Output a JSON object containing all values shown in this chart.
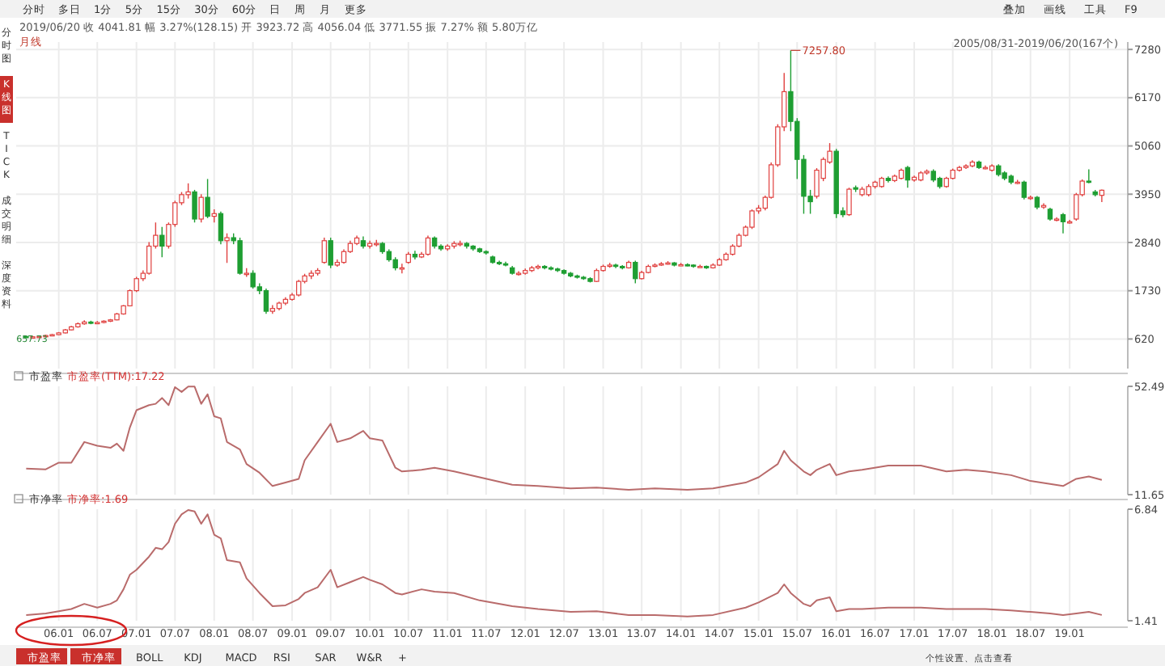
{
  "chart_data": [
    {
      "type": "candlestick",
      "title": "2019/06/20 收 4041.81 幅 3.27%(128.15) 开 3923.72 高 4056.04 低 3771.55 振 7.27% 额 5.80万亿",
      "subtitle": "月线",
      "annotations": [
        {
          "text": "7257.80",
          "x": "2015-06",
          "y": 7257.8
        },
        {
          "text": "657.73",
          "x": "2005-08",
          "y": 657.73
        },
        "2005/08/31-2019/06/20(167个)"
      ],
      "xticks": [
        {
          "value": "2006-01",
          "label": null
        },
        {
          "value": "2006-07",
          "label": null
        },
        {
          "value": "2007-01",
          "label": null
        },
        {
          "value": "2007-07",
          "label": null
        },
        {
          "value": "2008-01",
          "label": null
        },
        {
          "value": "2008-07",
          "label": null
        },
        {
          "value": "2009-01",
          "label": null
        },
        {
          "value": "2009-07",
          "label": null
        },
        {
          "value": "2010-01",
          "label": null
        },
        {
          "value": "2010-07",
          "label": null
        },
        {
          "value": "2011-01",
          "label": null
        },
        {
          "value": "2011-07",
          "label": null
        },
        {
          "value": "2012-01",
          "label": null
        },
        {
          "value": "2012-07",
          "label": null
        },
        {
          "value": "2013-01",
          "label": null
        },
        {
          "value": "2013-07",
          "label": null
        },
        {
          "value": "2014-01",
          "label": null
        },
        {
          "value": "2014-07",
          "label": null
        },
        {
          "value": "2015-01",
          "label": null
        },
        {
          "value": "2015-07",
          "label": null
        },
        {
          "value": "2016-01",
          "label": null
        },
        {
          "value": "2016-07",
          "label": null
        },
        {
          "value": "2017-01",
          "label": null
        },
        {
          "value": "2017-07",
          "label": null
        },
        {
          "value": "2018-01",
          "label": null
        },
        {
          "value": "2018-07",
          "label": null
        },
        {
          "value": "2019-01",
          "label": null
        }
      ],
      "x": [
        "2005-08",
        "2005-09",
        "2005-10",
        "2005-11",
        "2005-12",
        "2006-01",
        "2006-02",
        "2006-03",
        "2006-04",
        "2006-05",
        "2006-06",
        "2006-07",
        "2006-08",
        "2006-09",
        "2006-10",
        "2006-11",
        "2006-12",
        "2007-01",
        "2007-02",
        "2007-03",
        "2007-04",
        "2007-05",
        "2007-06",
        "2007-07",
        "2007-08",
        "2007-09",
        "2007-10",
        "2007-11",
        "2007-12",
        "2008-01",
        "2008-02",
        "2008-03",
        "2008-04",
        "2008-05",
        "2008-06",
        "2008-07",
        "2008-08",
        "2008-09",
        "2008-10",
        "2008-11",
        "2008-12",
        "2009-01",
        "2009-02",
        "2009-03",
        "2009-04",
        "2009-05",
        "2009-06",
        "2009-07",
        "2009-08",
        "2009-09",
        "2009-10",
        "2009-11",
        "2009-12",
        "2010-01",
        "2010-02",
        "2010-03",
        "2010-04",
        "2010-05",
        "2010-06",
        "2010-07",
        "2010-08",
        "2010-09",
        "2010-10",
        "2010-11",
        "2010-12",
        "2011-01",
        "2011-02",
        "2011-03",
        "2011-04",
        "2011-05",
        "2011-06",
        "2011-07",
        "2011-08",
        "2011-09",
        "2011-10",
        "2011-11",
        "2011-12",
        "2012-01",
        "2012-02",
        "2012-03",
        "2012-04",
        "2012-05",
        "2012-06",
        "2012-07",
        "2012-08",
        "2012-09",
        "2012-10",
        "2012-11",
        "2012-12",
        "2013-01",
        "2013-02",
        "2013-03",
        "2013-04",
        "2013-05",
        "2013-06",
        "2013-07",
        "2013-08",
        "2013-09",
        "2013-10",
        "2013-11",
        "2013-12",
        "2014-01",
        "2014-02",
        "2014-03",
        "2014-04",
        "2014-05",
        "2014-06",
        "2014-07",
        "2014-08",
        "2014-09",
        "2014-10",
        "2014-11",
        "2014-12",
        "2015-01",
        "2015-02",
        "2015-03",
        "2015-04",
        "2015-05",
        "2015-06",
        "2015-07",
        "2015-08",
        "2015-09",
        "2015-10",
        "2015-11",
        "2015-12",
        "2016-01",
        "2016-02",
        "2016-03",
        "2016-04",
        "2016-05",
        "2016-06",
        "2016-07",
        "2016-08",
        "2016-09",
        "2016-10",
        "2016-11",
        "2016-12",
        "2017-01",
        "2017-02",
        "2017-03",
        "2017-04",
        "2017-05",
        "2017-06",
        "2017-07",
        "2017-08",
        "2017-09",
        "2017-10",
        "2017-11",
        "2017-12",
        "2018-01",
        "2018-02",
        "2018-03",
        "2018-04",
        "2018-05",
        "2018-06",
        "2018-07",
        "2018-08",
        "2018-09",
        "2018-10",
        "2018-11",
        "2018-12",
        "2019-01",
        "2019-02",
        "2019-03",
        "2019-04",
        "2019-05",
        "2019-06"
      ],
      "ohlc": [
        [
          680,
          700,
          657.73,
          660
        ],
        [
          660,
          690,
          650,
          670
        ],
        [
          670,
          700,
          660,
          680
        ],
        [
          680,
          720,
          670,
          700
        ],
        [
          700,
          740,
          690,
          720
        ],
        [
          720,
          780,
          710,
          760
        ],
        [
          760,
          850,
          750,
          830
        ],
        [
          830,
          920,
          820,
          900
        ],
        [
          900,
          1000,
          880,
          970
        ],
        [
          970,
          1050,
          950,
          1010
        ],
        [
          1010,
          1040,
          960,
          990
        ],
        [
          990,
          1030,
          970,
          1000
        ],
        [
          1000,
          1050,
          980,
          1030
        ],
        [
          1030,
          1080,
          1010,
          1060
        ],
        [
          1060,
          1220,
          1050,
          1196
        ],
        [
          1196,
          1400,
          1180,
          1383
        ],
        [
          1383,
          1760,
          1370,
          1732
        ],
        [
          1732,
          2050,
          1700,
          2008
        ],
        [
          2008,
          2200,
          1950,
          2132
        ],
        [
          2132,
          2850,
          2100,
          2756
        ],
        [
          2756,
          3300,
          2700,
          3005
        ],
        [
          3005,
          3200,
          2500,
          2756
        ],
        [
          2756,
          3300,
          2700,
          3255
        ],
        [
          3255,
          3800,
          3200,
          3754
        ],
        [
          3754,
          4000,
          3700,
          3940
        ],
        [
          3940,
          4200,
          3850,
          4003
        ],
        [
          4003,
          4050,
          3300,
          3379
        ],
        [
          3379,
          3950,
          3300,
          3878
        ],
        [
          3878,
          4300,
          3400,
          3442
        ],
        [
          3442,
          3600,
          3300,
          3504
        ],
        [
          3504,
          3550,
          2800,
          2881
        ],
        [
          2881,
          3050,
          2370,
          2950
        ],
        [
          2950,
          3050,
          2800,
          2881
        ],
        [
          2881,
          2950,
          2100,
          2132
        ],
        [
          2132,
          2250,
          2050,
          2132
        ],
        [
          2132,
          2200,
          1780,
          1820
        ],
        [
          1820,
          1900,
          1650,
          1732
        ],
        [
          1732,
          1780,
          1200,
          1258
        ],
        [
          1258,
          1400,
          1200,
          1321
        ],
        [
          1321,
          1480,
          1280,
          1445
        ],
        [
          1445,
          1580,
          1400,
          1532
        ],
        [
          1532,
          1680,
          1500,
          1632
        ],
        [
          1632,
          1980,
          1600,
          1945
        ],
        [
          1945,
          2120,
          1900,
          2070
        ],
        [
          2070,
          2200,
          2000,
          2132
        ],
        [
          2132,
          2250,
          2080,
          2195
        ],
        [
          2382,
          2950,
          2350,
          2881
        ],
        [
          2881,
          2950,
          2250,
          2320
        ],
        [
          2320,
          2450,
          2280,
          2382
        ],
        [
          2382,
          2680,
          2350,
          2631
        ],
        [
          2631,
          2880,
          2600,
          2818
        ],
        [
          2818,
          3000,
          2780,
          2943
        ],
        [
          2881,
          2980,
          2700,
          2756
        ],
        [
          2756,
          2880,
          2700,
          2818
        ],
        [
          2818,
          2900,
          2750,
          2818
        ],
        [
          2818,
          2850,
          2580,
          2631
        ],
        [
          2631,
          2680,
          2400,
          2444
        ],
        [
          2444,
          2500,
          2200,
          2257
        ],
        [
          2257,
          2350,
          2130,
          2257
        ],
        [
          2382,
          2620,
          2350,
          2569
        ],
        [
          2569,
          2650,
          2450,
          2507
        ],
        [
          2507,
          2620,
          2480,
          2569
        ],
        [
          2569,
          3000,
          2540,
          2943
        ],
        [
          2943,
          2980,
          2700,
          2756
        ],
        [
          2756,
          2800,
          2650,
          2694
        ],
        [
          2694,
          2800,
          2650,
          2756
        ],
        [
          2756,
          2870,
          2700,
          2818
        ],
        [
          2818,
          2880,
          2750,
          2818
        ],
        [
          2818,
          2850,
          2700,
          2756
        ],
        [
          2756,
          2780,
          2650,
          2694
        ],
        [
          2694,
          2720,
          2600,
          2631
        ],
        [
          2631,
          2660,
          2560,
          2600
        ],
        [
          2507,
          2540,
          2350,
          2382
        ],
        [
          2382,
          2420,
          2320,
          2350
        ],
        [
          2350,
          2400,
          2290,
          2320
        ],
        [
          2257,
          2300,
          2100,
          2132
        ],
        [
          2132,
          2180,
          2080,
          2132
        ],
        [
          2132,
          2240,
          2100,
          2195
        ],
        [
          2195,
          2300,
          2160,
          2257
        ],
        [
          2257,
          2330,
          2220,
          2290
        ],
        [
          2290,
          2320,
          2220,
          2257
        ],
        [
          2257,
          2290,
          2200,
          2230
        ],
        [
          2230,
          2260,
          2160,
          2195
        ],
        [
          2195,
          2220,
          2100,
          2132
        ],
        [
          2132,
          2160,
          2040,
          2070
        ],
        [
          2070,
          2100,
          2010,
          2040
        ],
        [
          2040,
          2070,
          1980,
          2008
        ],
        [
          2008,
          2040,
          1920,
          1945
        ],
        [
          1945,
          2240,
          1930,
          2195
        ],
        [
          2195,
          2330,
          2170,
          2290
        ],
        [
          2290,
          2370,
          2260,
          2320
        ],
        [
          2320,
          2350,
          2250,
          2290
        ],
        [
          2290,
          2320,
          2220,
          2257
        ],
        [
          2257,
          2420,
          2240,
          2382
        ],
        [
          2382,
          2420,
          1900,
          2008
        ],
        [
          2008,
          2190,
          1990,
          2150
        ],
        [
          2150,
          2330,
          2130,
          2290
        ],
        [
          2290,
          2360,
          2270,
          2320
        ],
        [
          2320,
          2390,
          2300,
          2350
        ],
        [
          2350,
          2410,
          2330,
          2370
        ],
        [
          2370,
          2390,
          2290,
          2320
        ],
        [
          2320,
          2370,
          2300,
          2330
        ],
        [
          2330,
          2360,
          2290,
          2320
        ],
        [
          2320,
          2340,
          2260,
          2290
        ],
        [
          2290,
          2330,
          2260,
          2290
        ],
        [
          2290,
          2310,
          2230,
          2257
        ],
        [
          2257,
          2360,
          2240,
          2320
        ],
        [
          2320,
          2480,
          2300,
          2444
        ],
        [
          2444,
          2610,
          2420,
          2569
        ],
        [
          2569,
          2800,
          2540,
          2756
        ],
        [
          2756,
          3050,
          2730,
          3005
        ],
        [
          3005,
          3230,
          2980,
          3192
        ],
        [
          3192,
          3600,
          3150,
          3566
        ],
        [
          3566,
          3700,
          3500,
          3629
        ],
        [
          3629,
          3920,
          3580,
          3878
        ],
        [
          3878,
          4680,
          3850,
          4626
        ],
        [
          4626,
          5560,
          4580,
          5499
        ],
        [
          5499,
          6740,
          5400,
          6309
        ],
        [
          6309,
          7257.8,
          5400,
          5624
        ],
        [
          5624,
          5700,
          4300,
          4751
        ],
        [
          4751,
          4850,
          3500,
          3903
        ],
        [
          3903,
          4050,
          3500,
          3778
        ],
        [
          3903,
          4550,
          3850,
          4502
        ],
        [
          4315,
          4800,
          4250,
          4751
        ],
        [
          4689,
          5125,
          4650,
          4938
        ],
        [
          4938,
          4990,
          3400,
          3504
        ],
        [
          3566,
          3650,
          3420,
          3479
        ],
        [
          3479,
          4100,
          3450,
          4065
        ],
        [
          4100,
          4150,
          4000,
          4065
        ],
        [
          3940,
          4120,
          3900,
          4065
        ],
        [
          3940,
          4180,
          3900,
          4127
        ],
        [
          4127,
          4260,
          4080,
          4227
        ],
        [
          4127,
          4350,
          4100,
          4315
        ],
        [
          4315,
          4360,
          4220,
          4265
        ],
        [
          4265,
          4400,
          4230,
          4365
        ],
        [
          4315,
          4540,
          4290,
          4502
        ],
        [
          4564,
          4600,
          4100,
          4277
        ],
        [
          4277,
          4380,
          4240,
          4340
        ],
        [
          4277,
          4480,
          4250,
          4440
        ],
        [
          4440,
          4520,
          4400,
          4477
        ],
        [
          4477,
          4520,
          4230,
          4277
        ],
        [
          4315,
          4350,
          4080,
          4127
        ],
        [
          4127,
          4350,
          4100,
          4315
        ],
        [
          4315,
          4540,
          4290,
          4502
        ],
        [
          4502,
          4600,
          4470,
          4564
        ],
        [
          4564,
          4640,
          4530,
          4601
        ],
        [
          4601,
          4730,
          4570,
          4689
        ],
        [
          4689,
          4720,
          4530,
          4564
        ],
        [
          4564,
          4610,
          4520,
          4564
        ],
        [
          4502,
          4640,
          4470,
          4601
        ],
        [
          4601,
          4640,
          4360,
          4402
        ],
        [
          4440,
          4480,
          4270,
          4315
        ],
        [
          4365,
          4400,
          4180,
          4227
        ],
        [
          4227,
          4280,
          4180,
          4227
        ],
        [
          4227,
          4260,
          3830,
          3878
        ],
        [
          3878,
          3920,
          3820,
          3878
        ],
        [
          3878,
          3910,
          3600,
          3654
        ],
        [
          3654,
          3740,
          3610,
          3691
        ],
        [
          3604,
          3640,
          3340,
          3379
        ],
        [
          3379,
          3420,
          3330,
          3379
        ],
        [
          3479,
          3520,
          3050,
          3317
        ],
        [
          3317,
          3360,
          3270,
          3317
        ],
        [
          3379,
          3980,
          3340,
          3940
        ],
        [
          3940,
          4290,
          3900,
          4252
        ],
        [
          4252,
          4520,
          4200,
          4227
        ],
        [
          4003,
          4050,
          3900,
          3940
        ],
        [
          3923.72,
          4056.04,
          3771.55,
          4041.81
        ]
      ],
      "xlim": [
        "2005-06-15",
        "2019-10-01"
      ],
      "ylim": [
        -60,
        7450
      ],
      "yticks": [
        620,
        1730,
        2840,
        3950,
        5060,
        6170,
        7280
      ],
      "tick_labels": "y",
      "grid": true
    },
    {
      "type": "line",
      "title": "市盈率",
      "legend": "top left",
      "xlim": [
        "2005-06-15",
        "2019-10-01"
      ],
      "ylim": [
        11.65,
        52.49
      ],
      "yticks": [
        11.65,
        52.49
      ],
      "tick_labels": "y",
      "grid": "x",
      "xticks": [
        {
          "value": "2006-01",
          "label": null
        },
        {
          "value": "2006-07",
          "label": null
        },
        {
          "value": "2007-01",
          "label": null
        },
        {
          "value": "2007-07",
          "label": null
        },
        {
          "value": "2008-01",
          "label": null
        },
        {
          "value": "2008-07",
          "label": null
        },
        {
          "value": "2009-01",
          "label": null
        },
        {
          "value": "2009-07",
          "label": null
        },
        {
          "value": "2010-01",
          "label": null
        },
        {
          "value": "2010-07",
          "label": null
        },
        {
          "value": "2011-01",
          "label": null
        },
        {
          "value": "2011-07",
          "label": null
        },
        {
          "value": "2012-01",
          "label": null
        },
        {
          "value": "2012-07",
          "label": null
        },
        {
          "value": "2013-01",
          "label": null
        },
        {
          "value": "2013-07",
          "label": null
        },
        {
          "value": "2014-01",
          "label": null
        },
        {
          "value": "2014-07",
          "label": null
        },
        {
          "value": "2015-01",
          "label": null
        },
        {
          "value": "2015-07",
          "label": null
        },
        {
          "value": "2016-01",
          "label": null
        },
        {
          "value": "2016-07",
          "label": null
        },
        {
          "value": "2017-01",
          "label": null
        },
        {
          "value": "2017-07",
          "label": null
        },
        {
          "value": "2018-01",
          "label": null
        },
        {
          "value": "2018-07",
          "label": null
        },
        {
          "value": "2019-01",
          "label": null
        }
      ],
      "series": [
        {
          "name": "市盈率(TTM):17.22",
          "color": "#b96b6b",
          "x": [
            "2005-08",
            "2005-11",
            "2006-01",
            "2006-03",
            "2006-05",
            "2006-07",
            "2006-09",
            "2006-10",
            "2006-11",
            "2006-12",
            "2007-01",
            "2007-03",
            "2007-04",
            "2007-05",
            "2007-06",
            "2007-07",
            "2007-08",
            "2007-09",
            "2007-10",
            "2007-11",
            "2007-12",
            "2008-01",
            "2008-02",
            "2008-03",
            "2008-05",
            "2008-06",
            "2008-08",
            "2008-10",
            "2008-12",
            "2009-02",
            "2009-03",
            "2009-05",
            "2009-07",
            "2009-08",
            "2009-10",
            "2009-12",
            "2010-01",
            "2010-03",
            "2010-05",
            "2010-06",
            "2010-09",
            "2010-11",
            "2011-02",
            "2011-06",
            "2011-11",
            "2012-03",
            "2012-08",
            "2012-12",
            "2013-05",
            "2013-09",
            "2014-02",
            "2014-06",
            "2014-11",
            "2015-01",
            "2015-04",
            "2015-05",
            "2015-06",
            "2015-08",
            "2015-09",
            "2015-10",
            "2015-12",
            "2016-01",
            "2016-03",
            "2016-05",
            "2016-09",
            "2016-11",
            "2017-02",
            "2017-06",
            "2017-09",
            "2017-12",
            "2018-04",
            "2018-07",
            "2018-10",
            "2018-12",
            "2019-02",
            "2019-04",
            "2019-06"
          ],
          "values": [
            21.5,
            21.2,
            23.7,
            23.7,
            31.5,
            30.1,
            29.3,
            30.9,
            28.2,
            37.0,
            43.5,
            45.4,
            45.9,
            48.1,
            45.4,
            52.2,
            50.4,
            52.4,
            52.4,
            45.9,
            49.5,
            41.2,
            40.4,
            31.5,
            28.7,
            23.2,
            19.9,
            14.9,
            16.2,
            17.6,
            24.6,
            31.5,
            38.4,
            31.5,
            32.9,
            35.7,
            32.9,
            32.1,
            21.8,
            20.4,
            21.0,
            21.8,
            20.4,
            18.2,
            15.4,
            14.9,
            14.0,
            14.3,
            13.5,
            14.0,
            13.5,
            14.0,
            16.2,
            18.2,
            23.2,
            28.2,
            24.6,
            20.4,
            19.0,
            21.0,
            23.2,
            19.0,
            20.4,
            21.0,
            22.6,
            22.6,
            22.6,
            20.4,
            21.0,
            20.4,
            19.0,
            16.8,
            15.7,
            14.9,
            17.6,
            18.5,
            17.22
          ]
        }
      ]
    },
    {
      "type": "line",
      "title": "市净率",
      "legend": "top left",
      "xlim": [
        "2005-06-15",
        "2019-10-01"
      ],
      "ylim": [
        1.41,
        6.84
      ],
      "yticks": [
        1.41,
        6.84
      ],
      "grid": "x",
      "xticks": [
        {
          "value": "2006-01",
          "label": "06.01"
        },
        {
          "value": "2006-07",
          "label": "06.07"
        },
        {
          "value": "2007-01",
          "label": "07.01"
        },
        {
          "value": "2007-07",
          "label": "07.07"
        },
        {
          "value": "2008-01",
          "label": "08.01"
        },
        {
          "value": "2008-07",
          "label": "08.07"
        },
        {
          "value": "2009-01",
          "label": "09.01"
        },
        {
          "value": "2009-07",
          "label": "09.07"
        },
        {
          "value": "2010-01",
          "label": "10.01"
        },
        {
          "value": "2010-07",
          "label": "10.07"
        },
        {
          "value": "2011-01",
          "label": "11.01"
        },
        {
          "value": "2011-07",
          "label": "11.07"
        },
        {
          "value": "2012-01",
          "label": "12.01"
        },
        {
          "value": "2012-07",
          "label": "12.07"
        },
        {
          "value": "2013-01",
          "label": "13.01"
        },
        {
          "value": "2013-07",
          "label": "13.07"
        },
        {
          "value": "2014-01",
          "label": "14.01"
        },
        {
          "value": "2014-07",
          "label": "14.07"
        },
        {
          "value": "2015-01",
          "label": "15.01"
        },
        {
          "value": "2015-07",
          "label": "15.07"
        },
        {
          "value": "2016-01",
          "label": "16.01"
        },
        {
          "value": "2016-07",
          "label": "16.07"
        },
        {
          "value": "2017-01",
          "label": "17.01"
        },
        {
          "value": "2017-07",
          "label": "17.07"
        },
        {
          "value": "2018-01",
          "label": "18.01"
        },
        {
          "value": "2018-07",
          "label": "18.07"
        },
        {
          "value": "2019-01",
          "label": "19.01"
        }
      ],
      "series": [
        {
          "name": "市净率:1.69",
          "color": "#b96b6b",
          "x": [
            "2005-08",
            "2005-11",
            "2006-01",
            "2006-03",
            "2006-05",
            "2006-07",
            "2006-09",
            "2006-10",
            "2006-11",
            "2006-12",
            "2007-01",
            "2007-03",
            "2007-04",
            "2007-05",
            "2007-06",
            "2007-07",
            "2007-08",
            "2007-09",
            "2007-10",
            "2007-11",
            "2007-12",
            "2008-01",
            "2008-02",
            "2008-03",
            "2008-05",
            "2008-06",
            "2008-08",
            "2008-10",
            "2008-12",
            "2009-02",
            "2009-03",
            "2009-05",
            "2009-07",
            "2009-08",
            "2009-10",
            "2009-12",
            "2010-01",
            "2010-03",
            "2010-05",
            "2010-06",
            "2010-09",
            "2010-11",
            "2011-02",
            "2011-06",
            "2011-11",
            "2012-03",
            "2012-08",
            "2012-12",
            "2013-05",
            "2013-09",
            "2014-02",
            "2014-06",
            "2014-11",
            "2015-01",
            "2015-04",
            "2015-05",
            "2015-06",
            "2015-08",
            "2015-09",
            "2015-10",
            "2015-12",
            "2016-01",
            "2016-03",
            "2016-05",
            "2016-09",
            "2016-11",
            "2017-02",
            "2017-06",
            "2017-09",
            "2017-12",
            "2018-04",
            "2018-07",
            "2018-10",
            "2018-12",
            "2019-02",
            "2019-04",
            "2019-06"
          ],
          "values": [
            1.69,
            1.76,
            1.87,
            1.98,
            2.23,
            2.05,
            2.23,
            2.4,
            2.94,
            3.65,
            3.89,
            4.53,
            4.96,
            4.89,
            5.24,
            6.13,
            6.59,
            6.8,
            6.73,
            6.13,
            6.59,
            5.6,
            5.42,
            4.36,
            4.25,
            3.47,
            2.76,
            2.12,
            2.16,
            2.47,
            2.76,
            3.04,
            3.89,
            3.04,
            3.29,
            3.54,
            3.4,
            3.18,
            2.76,
            2.69,
            2.94,
            2.83,
            2.76,
            2.4,
            2.12,
            1.98,
            1.84,
            1.87,
            1.69,
            1.69,
            1.62,
            1.69,
            2.05,
            2.3,
            2.76,
            3.18,
            2.76,
            2.23,
            2.12,
            2.4,
            2.55,
            1.87,
            1.98,
            1.98,
            2.05,
            2.05,
            2.05,
            1.98,
            1.98,
            1.98,
            1.91,
            1.84,
            1.76,
            1.69,
            1.76,
            1.84,
            1.69
          ]
        }
      ]
    },
    {
      "type": "other",
      "annotations": [
        "分时",
        "多日",
        "1分",
        "5分",
        "15分",
        "30分",
        "60分",
        "日",
        "周",
        "月",
        "更多"
      ]
    },
    {
      "type": "other",
      "annotations": [
        "叠加",
        "画线",
        "工具",
        "F9"
      ]
    },
    {
      "type": "other",
      "annotations": [
        "分时图",
        "K线图",
        "TICK",
        "成交明细",
        "深度资料"
      ]
    },
    {
      "type": "other",
      "annotations": [
        "市盈率",
        "市净率",
        "BOLL",
        "KDJ",
        "MACD",
        "RSI",
        "SAR",
        "W&R",
        "+"
      ]
    },
    {
      "type": "other",
      "annotations": [
        "个性设置、点击查看"
      ]
    }
  ]
}
